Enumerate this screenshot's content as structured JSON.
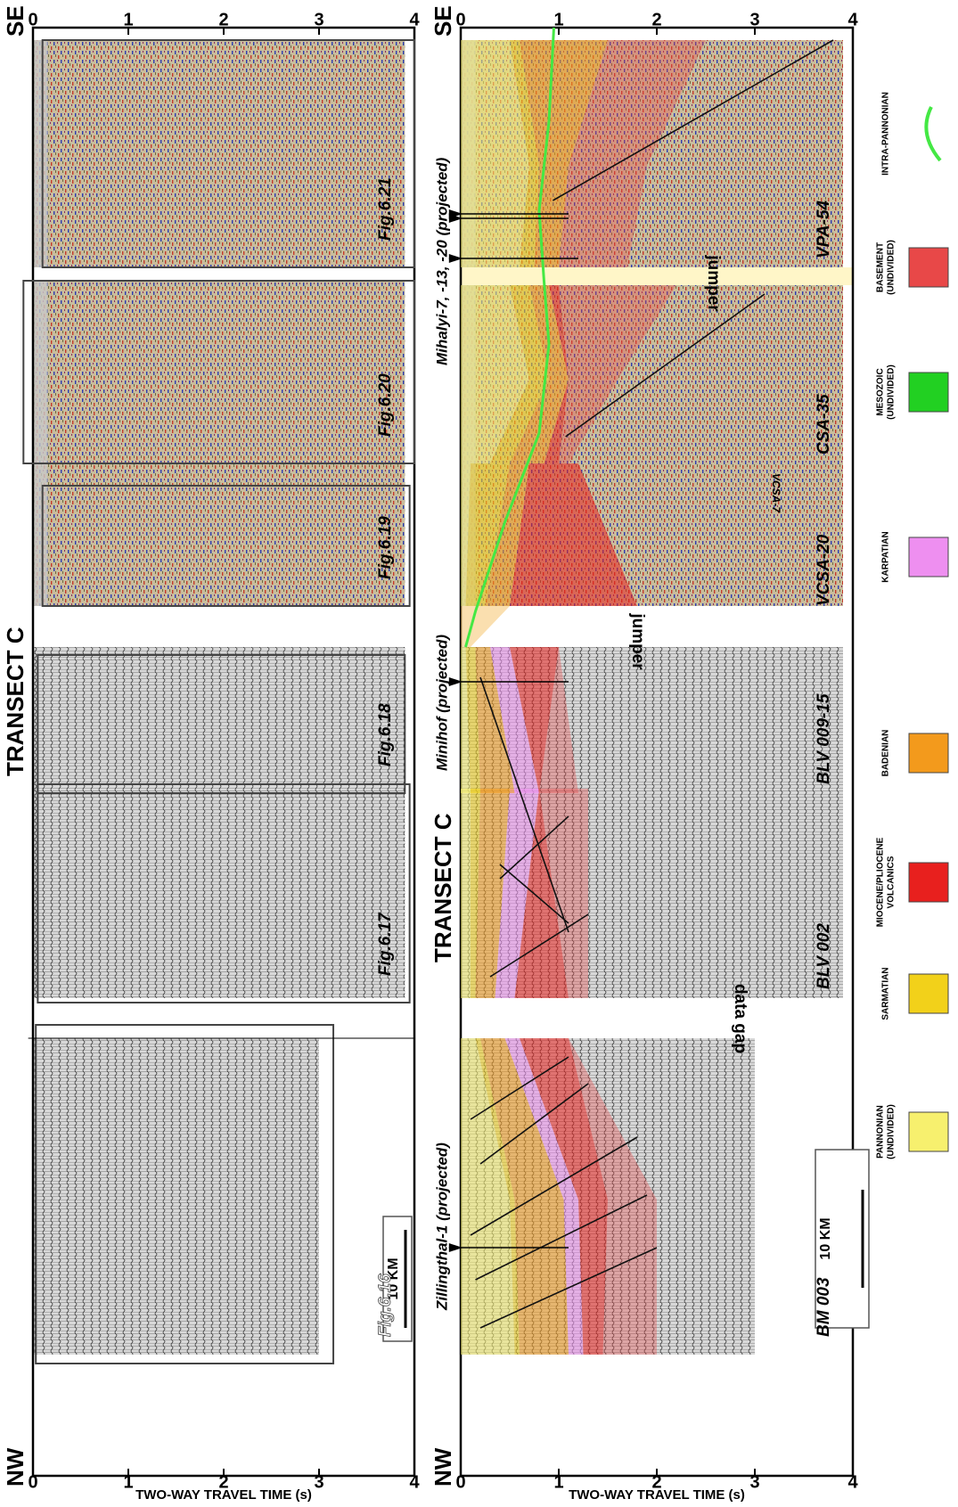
{
  "panels": [
    {
      "direction_start": "NW",
      "direction_end": "SE",
      "transect": "TRANSECT C",
      "axis_title": "TWO-WAY TRAVEL TIME (s)",
      "ticks": [
        0,
        1,
        2,
        3,
        4
      ],
      "scale_bar": "10 KM",
      "figures": [
        "Fig.6.16",
        "Fig.6.17",
        "Fig.6.18",
        "Fig.6.19",
        "Fig.6.20",
        "Fig.6.21"
      ]
    },
    {
      "direction_start": "NW",
      "direction_end": "SE",
      "transect": "TRANSECT C",
      "axis_title": "TWO-WAY TRAVEL TIME (s)",
      "ticks": [
        0,
        1,
        2,
        3,
        4
      ],
      "scale_bar": "10 KM",
      "lines": [
        "BM 003",
        "BLV 002",
        "BLV 009-15",
        "VCSA-20",
        "VCSA-7",
        "CSA-35",
        "VPA-54"
      ],
      "notes": [
        "data gap",
        "jumper",
        "jumper"
      ],
      "wells": [
        "Zillingthal-1 (projected)",
        "Minihof (projected)",
        "Mihalyi-7, -13, -20 (projected)"
      ]
    }
  ],
  "legend": [
    {
      "label": [
        "PANNONIAN",
        "(UNDIVIDED)"
      ],
      "color": "#f7f06e"
    },
    {
      "label": [
        "SARMATIAN"
      ],
      "color": "#f2d11a"
    },
    {
      "label": [
        "MIOCENE/PLIOCENE",
        "VOLCANICS"
      ],
      "color": "#e8201e"
    },
    {
      "label": [
        "BADENIAN"
      ],
      "color": "#f39a1c"
    },
    {
      "label": [
        "KARPATIAN"
      ],
      "color": "#ee8ff0"
    },
    {
      "label": [
        "MESOZOIC",
        "(UNDIVIDED)"
      ],
      "color": "#22d022"
    },
    {
      "label": [
        "BASEMENT",
        "(UNDIVIDED)"
      ],
      "color": "#e84848"
    },
    {
      "label": [
        "INTRA-PANNONIAN"
      ],
      "color": "#44e844"
    }
  ]
}
